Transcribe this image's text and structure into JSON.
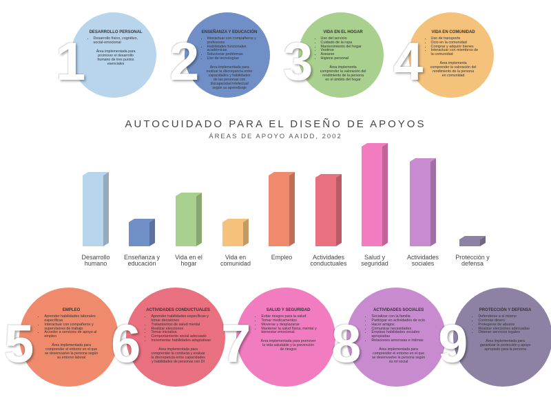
{
  "chart_data": {
    "type": "bar",
    "title": "AUTOCUIDADO PARA EL DISEÑO DE APOYOS",
    "subtitle": "ÁREAS DE APOYO AAIDD, 2002",
    "categories": [
      "Desarrollo humano",
      "Enseñanza y educación",
      "Vida en el hogar",
      "Vida en comunidad",
      "Empleo",
      "Actividades conductuales",
      "Salud y seguridad",
      "Actividades sociales",
      "Protección y defensa"
    ],
    "values": [
      103,
      35,
      73,
      35,
      103,
      100,
      145,
      123,
      10
    ],
    "colors": [
      "#b9d5ec",
      "#6f8fc6",
      "#a9d08e",
      "#f5c27c",
      "#ef8b6c",
      "#e9707e",
      "#f27cc0",
      "#c98bd0",
      "#8d82a4"
    ]
  },
  "cards": [
    {
      "number": "1",
      "title": "DESARROLLO PERSONAL",
      "color": "#b9d5ec",
      "items": [
        "Desarrollo físico, cognitivo, social-emocional"
      ],
      "description": "Área implementada para promover el desarrollo humano de tres puntos esenciales"
    },
    {
      "number": "2",
      "title": "ENSEÑANZA Y EDUCACIÓN",
      "color": "#6f8fc6",
      "items": [
        "Interactuar con compañeros y profesores",
        "Habilidades funcionales académicas",
        "Solucionar problemas",
        "Uso de tecnologías"
      ],
      "description": "Área implementada para evaluar la discrepancia entre capacidades y habilidades de las personas con discapacidad intelectual según su aprendizaje"
    },
    {
      "number": "3",
      "title": "VIDA EN EL HOGAR",
      "color": "#a9d08e",
      "items": [
        "Uso del servicio",
        "Cuidado de la ropa",
        "Mantenimiento del hogar",
        "Vestirse",
        "Asearse",
        "Higiene personal"
      ],
      "description": "Área implementa comprender la valoración del rendimiento de la persona en el ámbito del hogar"
    },
    {
      "number": "4",
      "title": "VIDA EN COMUNIDAD",
      "color": "#f5c27c",
      "items": [
        "Uso de transporte",
        "Ocio en la comunidad",
        "Comprar y adquirir bienes",
        "Interactuar con miembros de la comunidad"
      ],
      "description": "Área implementa comprender la valoración del rendimiento de la persona en comunidad"
    },
    {
      "number": "5",
      "title": "EMPLEO",
      "color": "#ef8b6c",
      "items": [
        "Aprender habilidades laborales específicas",
        "Interactuar con compañeros y supervisores de trabajo",
        "Acceder a servicios de apoyo al empleo"
      ],
      "description": "Área implementada para comprender el entorno en el que se desenvuelve la persona según su entorno laboral"
    },
    {
      "number": "6",
      "title": "ACTIVIDADES CONDUCTUALES",
      "color": "#e9707e",
      "items": [
        "Aprender habilidades específicas y tomar decisiones",
        "Tratamientos de salud mental",
        "Realizar elecciones",
        "Tomar iniciativa",
        "Comportamiento social adecuado",
        "Incrementar habilidades adaptativas"
      ],
      "description": "Área implementada para comprender la conducta y evaluar la discrepancia entre capacidades y habilidades de personas con DI"
    },
    {
      "number": "7",
      "title": "SALUD Y SEGURIDAD",
      "color": "#f27cc0",
      "items": [
        "Evitar riesgos para la salud",
        "Tomar medicamentos",
        "Moverse y desplazarse",
        "Mantener la salud física, mental y bienestar emocional"
      ],
      "description": "Área implementada para promover la vida saludable y la prevención de riesgos"
    },
    {
      "number": "8",
      "title": "ACTIVIDADES SOCIALES",
      "color": "#c98bd0",
      "items": [
        "Socializar con la familia",
        "Participar en actividades de ocio",
        "Hacer amigos",
        "Comunicar necesidades",
        "Emplear habilidades sociales apropiadas",
        "Relaciones amorosas e íntimas"
      ],
      "description": "Área implementada para comprender el entorno en el que se desenvuelve la persona según su rol social"
    },
    {
      "number": "9",
      "title": "PROTECCIÓN Y DEFENSA",
      "color": "#8d82a4",
      "items": [
        "Defenderse a sí mismo",
        "Controlar dinero",
        "Protegerse de abusos",
        "Realizar elecciones adecuadas",
        "Obtener servicios legales"
      ],
      "description": "Área implementada para garantizar la protección y apoyo apropiado para la persona"
    }
  ]
}
